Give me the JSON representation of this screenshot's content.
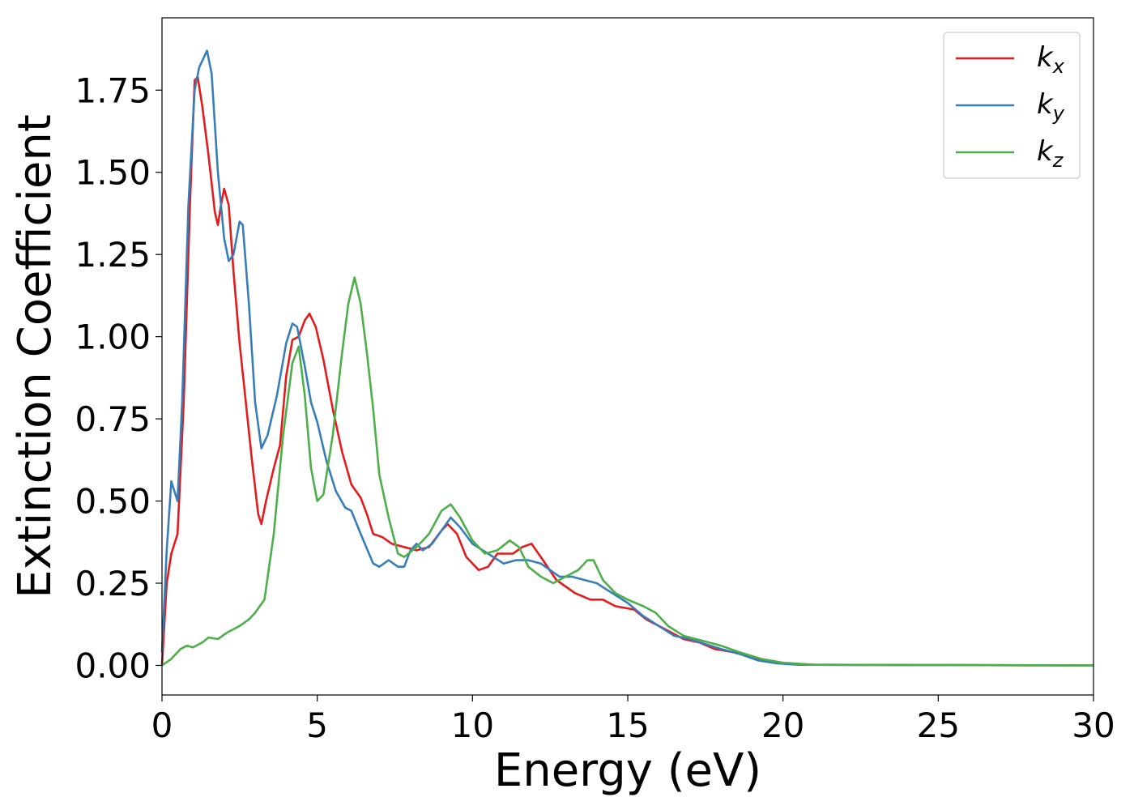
{
  "chart_data": {
    "type": "line",
    "title": "",
    "xlabel": "Energy (eV)",
    "ylabel": "Extinction Coefficient",
    "xlim": [
      0,
      30
    ],
    "ylim": [
      -0.09,
      1.97
    ],
    "xticks": [
      0,
      5,
      10,
      15,
      20,
      25,
      30
    ],
    "xtick_labels": [
      "0",
      "5",
      "10",
      "15",
      "20",
      "25",
      "30"
    ],
    "yticks": [
      0,
      0.25,
      0.5,
      0.75,
      1.0,
      1.25,
      1.5,
      1.75
    ],
    "ytick_labels": [
      "0.00",
      "0.25",
      "0.50",
      "0.75",
      "1.00",
      "1.25",
      "1.50",
      "1.75"
    ],
    "grid": false,
    "legend_position": "top-right",
    "series": [
      {
        "name": "k",
        "subscript": "x",
        "color": "#e41a1c",
        "points": [
          [
            0,
            0
          ],
          [
            0.15,
            0.25
          ],
          [
            0.3,
            0.34
          ],
          [
            0.5,
            0.4
          ],
          [
            0.7,
            0.8
          ],
          [
            0.9,
            1.4
          ],
          [
            1.05,
            1.78
          ],
          [
            1.15,
            1.79
          ],
          [
            1.3,
            1.7
          ],
          [
            1.5,
            1.55
          ],
          [
            1.7,
            1.38
          ],
          [
            1.8,
            1.34
          ],
          [
            1.9,
            1.4
          ],
          [
            2.0,
            1.45
          ],
          [
            2.15,
            1.4
          ],
          [
            2.3,
            1.2
          ],
          [
            2.5,
            0.98
          ],
          [
            2.7,
            0.8
          ],
          [
            2.9,
            0.62
          ],
          [
            3.1,
            0.46
          ],
          [
            3.2,
            0.43
          ],
          [
            3.35,
            0.5
          ],
          [
            3.6,
            0.6
          ],
          [
            3.8,
            0.67
          ],
          [
            4.0,
            0.88
          ],
          [
            4.2,
            0.99
          ],
          [
            4.4,
            1.0
          ],
          [
            4.6,
            1.05
          ],
          [
            4.75,
            1.07
          ],
          [
            4.95,
            1.03
          ],
          [
            5.2,
            0.93
          ],
          [
            5.5,
            0.78
          ],
          [
            5.8,
            0.65
          ],
          [
            6.1,
            0.55
          ],
          [
            6.4,
            0.51
          ],
          [
            6.6,
            0.46
          ],
          [
            6.8,
            0.4
          ],
          [
            7.1,
            0.39
          ],
          [
            7.4,
            0.37
          ],
          [
            7.8,
            0.36
          ],
          [
            8.2,
            0.35
          ],
          [
            8.6,
            0.36
          ],
          [
            9.0,
            0.41
          ],
          [
            9.2,
            0.43
          ],
          [
            9.5,
            0.4
          ],
          [
            9.8,
            0.33
          ],
          [
            10.2,
            0.29
          ],
          [
            10.5,
            0.3
          ],
          [
            10.8,
            0.34
          ],
          [
            11.3,
            0.34
          ],
          [
            11.6,
            0.36
          ],
          [
            11.9,
            0.37
          ],
          [
            12.2,
            0.33
          ],
          [
            12.7,
            0.26
          ],
          [
            13.3,
            0.22
          ],
          [
            13.8,
            0.2
          ],
          [
            14.2,
            0.2
          ],
          [
            14.6,
            0.18
          ],
          [
            15.2,
            0.17
          ],
          [
            15.6,
            0.14
          ],
          [
            16.2,
            0.11
          ],
          [
            16.8,
            0.08
          ],
          [
            17.3,
            0.07
          ],
          [
            17.8,
            0.05
          ],
          [
            18.4,
            0.04
          ],
          [
            19.0,
            0.025
          ],
          [
            19.6,
            0.01
          ],
          [
            20.3,
            0.004
          ],
          [
            21,
            0.002
          ],
          [
            25,
            0.001
          ],
          [
            30,
            0
          ]
        ]
      },
      {
        "name": "k",
        "subscript": "y",
        "color": "#377eb8",
        "points": [
          [
            0,
            0.04
          ],
          [
            0.15,
            0.35
          ],
          [
            0.3,
            0.56
          ],
          [
            0.4,
            0.53
          ],
          [
            0.5,
            0.5
          ],
          [
            0.65,
            0.8
          ],
          [
            0.85,
            1.4
          ],
          [
            1.05,
            1.75
          ],
          [
            1.2,
            1.82
          ],
          [
            1.45,
            1.87
          ],
          [
            1.6,
            1.8
          ],
          [
            1.8,
            1.5
          ],
          [
            2.0,
            1.3
          ],
          [
            2.15,
            1.23
          ],
          [
            2.3,
            1.25
          ],
          [
            2.5,
            1.35
          ],
          [
            2.6,
            1.34
          ],
          [
            2.8,
            1.1
          ],
          [
            3.0,
            0.8
          ],
          [
            3.2,
            0.66
          ],
          [
            3.4,
            0.7
          ],
          [
            3.7,
            0.82
          ],
          [
            4.0,
            0.98
          ],
          [
            4.2,
            1.04
          ],
          [
            4.35,
            1.03
          ],
          [
            4.6,
            0.91
          ],
          [
            4.8,
            0.8
          ],
          [
            5.0,
            0.74
          ],
          [
            5.3,
            0.62
          ],
          [
            5.6,
            0.53
          ],
          [
            5.9,
            0.48
          ],
          [
            6.1,
            0.47
          ],
          [
            6.4,
            0.4
          ],
          [
            6.8,
            0.31
          ],
          [
            7.0,
            0.3
          ],
          [
            7.3,
            0.32
          ],
          [
            7.6,
            0.3
          ],
          [
            7.8,
            0.3
          ],
          [
            8.0,
            0.35
          ],
          [
            8.2,
            0.37
          ],
          [
            8.4,
            0.35
          ],
          [
            8.7,
            0.37
          ],
          [
            9.0,
            0.41
          ],
          [
            9.3,
            0.45
          ],
          [
            9.6,
            0.42
          ],
          [
            10.0,
            0.37
          ],
          [
            10.5,
            0.34
          ],
          [
            11.0,
            0.31
          ],
          [
            11.4,
            0.32
          ],
          [
            11.8,
            0.32
          ],
          [
            12.2,
            0.31
          ],
          [
            12.8,
            0.27
          ],
          [
            13.2,
            0.27
          ],
          [
            13.6,
            0.26
          ],
          [
            14.0,
            0.25
          ],
          [
            14.5,
            0.22
          ],
          [
            15.0,
            0.19
          ],
          [
            15.5,
            0.15
          ],
          [
            16.0,
            0.12
          ],
          [
            16.5,
            0.09
          ],
          [
            17.0,
            0.08
          ],
          [
            17.5,
            0.065
          ],
          [
            18.0,
            0.05
          ],
          [
            18.6,
            0.035
          ],
          [
            19.2,
            0.015
          ],
          [
            19.8,
            0.006
          ],
          [
            20.5,
            0.002
          ],
          [
            25,
            0.001
          ],
          [
            30,
            0
          ]
        ]
      },
      {
        "name": "k",
        "subscript": "z",
        "color": "#4daf4a",
        "points": [
          [
            0,
            0
          ],
          [
            0.3,
            0.02
          ],
          [
            0.6,
            0.05
          ],
          [
            0.8,
            0.06
          ],
          [
            1.0,
            0.055
          ],
          [
            1.3,
            0.07
          ],
          [
            1.5,
            0.085
          ],
          [
            1.8,
            0.08
          ],
          [
            2.1,
            0.1
          ],
          [
            2.5,
            0.12
          ],
          [
            2.8,
            0.14
          ],
          [
            3.0,
            0.16
          ],
          [
            3.3,
            0.2
          ],
          [
            3.6,
            0.4
          ],
          [
            3.9,
            0.7
          ],
          [
            4.2,
            0.92
          ],
          [
            4.4,
            0.97
          ],
          [
            4.6,
            0.82
          ],
          [
            4.8,
            0.6
          ],
          [
            5.0,
            0.5
          ],
          [
            5.2,
            0.52
          ],
          [
            5.5,
            0.7
          ],
          [
            5.8,
            0.95
          ],
          [
            6.0,
            1.1
          ],
          [
            6.2,
            1.18
          ],
          [
            6.4,
            1.1
          ],
          [
            6.6,
            0.95
          ],
          [
            6.8,
            0.78
          ],
          [
            7.0,
            0.58
          ],
          [
            7.3,
            0.45
          ],
          [
            7.6,
            0.34
          ],
          [
            7.8,
            0.33
          ],
          [
            8.2,
            0.36
          ],
          [
            8.6,
            0.4
          ],
          [
            9.0,
            0.47
          ],
          [
            9.3,
            0.49
          ],
          [
            9.6,
            0.45
          ],
          [
            10.0,
            0.38
          ],
          [
            10.4,
            0.34
          ],
          [
            10.8,
            0.35
          ],
          [
            11.2,
            0.38
          ],
          [
            11.5,
            0.36
          ],
          [
            11.8,
            0.3
          ],
          [
            12.2,
            0.27
          ],
          [
            12.6,
            0.25
          ],
          [
            13.0,
            0.27
          ],
          [
            13.4,
            0.29
          ],
          [
            13.7,
            0.32
          ],
          [
            13.9,
            0.32
          ],
          [
            14.2,
            0.26
          ],
          [
            14.6,
            0.22
          ],
          [
            15.0,
            0.2
          ],
          [
            15.5,
            0.18
          ],
          [
            15.9,
            0.16
          ],
          [
            16.3,
            0.12
          ],
          [
            16.8,
            0.09
          ],
          [
            17.4,
            0.075
          ],
          [
            18.0,
            0.06
          ],
          [
            18.6,
            0.04
          ],
          [
            19.3,
            0.02
          ],
          [
            20.0,
            0.008
          ],
          [
            21,
            0.002
          ],
          [
            25,
            0.001
          ],
          [
            30,
            0
          ]
        ]
      }
    ]
  }
}
